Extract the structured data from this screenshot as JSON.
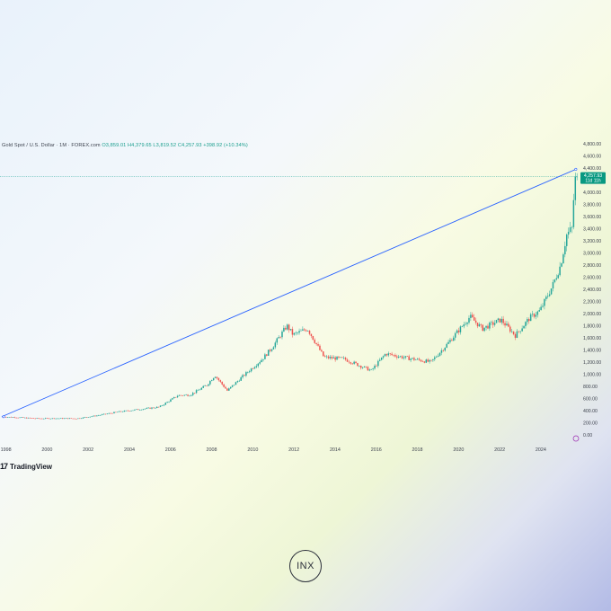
{
  "header": {
    "symbol": "Gold Spot / U.S. Dollar · 1M · FOREX.com",
    "open": "O3,859.01",
    "high": "H4,379.65",
    "low": "L3,819.52",
    "close": "C4,257.93",
    "change": "+398.92 (+10.34%)"
  },
  "price_label": {
    "value": "4,257.93",
    "countdown": "11d 11h"
  },
  "brand": {
    "name": "TradingView",
    "icon": "tradingview-logo-icon"
  },
  "logo": {
    "text": "INX"
  },
  "colors": {
    "up": "#26a69a",
    "down": "#ef5350",
    "trendline": "#2962ff",
    "price_badge": "#089981",
    "price_line": "#26a69a"
  },
  "chart_data": {
    "type": "candlestick",
    "title": "Gold Spot / U.S. Dollar · 1M · FOREX.com",
    "x_tick_labels": [
      "1998",
      "2000",
      "2002",
      "2004",
      "2006",
      "2008",
      "2010",
      "2012",
      "2014",
      "2016",
      "2018",
      "2020",
      "2022",
      "2024"
    ],
    "y_tick_labels": [
      "4,800.00",
      "4,600.00",
      "4,400.00",
      "4,200.00",
      "4,000.00",
      "3,800.00",
      "3,600.00",
      "3,400.00",
      "3,200.00",
      "3,000.00",
      "2,800.00",
      "2,600.00",
      "2,400.00",
      "2,200.00",
      "2,000.00",
      "1,800.00",
      "1,600.00",
      "1,400.00",
      "1,200.00",
      "1,000.00",
      "800.00",
      "600.00",
      "400.00",
      "200.00",
      "0.00"
    ],
    "ylim": [
      0,
      4800
    ],
    "xlim": [
      1997.8,
      2025.75
    ],
    "last_price": 4257.93,
    "trendline": {
      "from": {
        "x": 1997.8,
        "y": 300
      },
      "to": {
        "x": 2025.7,
        "y": 4379
      }
    },
    "price_path": [
      {
        "x": 1997.8,
        "y": 300
      },
      {
        "x": 1998.5,
        "y": 290
      },
      {
        "x": 1999.5,
        "y": 270
      },
      {
        "x": 2000.5,
        "y": 272
      },
      {
        "x": 2001.5,
        "y": 270
      },
      {
        "x": 2002.5,
        "y": 320
      },
      {
        "x": 2003.5,
        "y": 380
      },
      {
        "x": 2004.5,
        "y": 420
      },
      {
        "x": 2005.5,
        "y": 460
      },
      {
        "x": 2006.4,
        "y": 650
      },
      {
        "x": 2007.0,
        "y": 660
      },
      {
        "x": 2007.8,
        "y": 820
      },
      {
        "x": 2008.2,
        "y": 980
      },
      {
        "x": 2008.8,
        "y": 730
      },
      {
        "x": 2009.5,
        "y": 950
      },
      {
        "x": 2010.5,
        "y": 1250
      },
      {
        "x": 2011.0,
        "y": 1450
      },
      {
        "x": 2011.7,
        "y": 1800
      },
      {
        "x": 2012.0,
        "y": 1650
      },
      {
        "x": 2012.7,
        "y": 1750
      },
      {
        "x": 2013.5,
        "y": 1280
      },
      {
        "x": 2014.5,
        "y": 1250
      },
      {
        "x": 2015.8,
        "y": 1060
      },
      {
        "x": 2016.5,
        "y": 1340
      },
      {
        "x": 2017.5,
        "y": 1270
      },
      {
        "x": 2018.7,
        "y": 1200
      },
      {
        "x": 2019.5,
        "y": 1500
      },
      {
        "x": 2020.6,
        "y": 1950
      },
      {
        "x": 2021.2,
        "y": 1750
      },
      {
        "x": 2022.1,
        "y": 1900
      },
      {
        "x": 2022.8,
        "y": 1640
      },
      {
        "x": 2023.5,
        "y": 1930
      },
      {
        "x": 2024.0,
        "y": 2050
      },
      {
        "x": 2024.6,
        "y": 2450
      },
      {
        "x": 2025.0,
        "y": 2800
      },
      {
        "x": 2025.3,
        "y": 3300
      },
      {
        "x": 2025.55,
        "y": 3400
      },
      {
        "x": 2025.7,
        "y": 4258
      }
    ]
  }
}
